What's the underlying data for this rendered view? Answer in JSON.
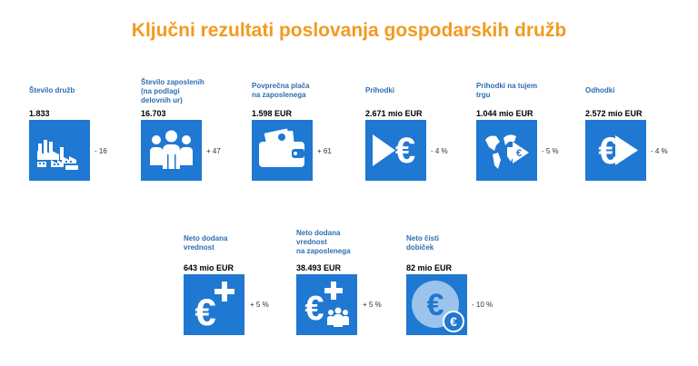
{
  "title": "Ključni rezultati poslovanja gospodarskih družb",
  "colors": {
    "title": "#F29A1F",
    "label": "#2E6DB4",
    "tile": "#1F78D1",
    "icon": "#FFFFFF",
    "coin": "#9CC3EC"
  },
  "kpis": [
    {
      "label": "Število družb",
      "value": "1.833",
      "change": "- 16",
      "icon": "factory-icon"
    },
    {
      "label": "Število zaposlenih\n(na podlagi\ndelovnih ur)",
      "value": "16.703",
      "change": "+ 47",
      "icon": "people-icon"
    },
    {
      "label": "Povprečna plača\nna zaposlenega",
      "value": "1.598 EUR",
      "change": "+ 61",
      "icon": "wallet-icon"
    },
    {
      "label": "Prihodki",
      "value": "2.671 mio EUR",
      "change": "- 4 %",
      "icon": "euro-in-icon"
    },
    {
      "label": "Prihodki na tujem\ntrgu",
      "value": "1.044 mio EUR",
      "change": "- 5 %",
      "icon": "globe-euro-icon"
    },
    {
      "label": "Odhodki",
      "value": "2.572 mio EUR",
      "change": "- 4 %",
      "icon": "euro-out-icon"
    },
    {
      "label": "Neto dodana\nvrednost",
      "value": "643 mio EUR",
      "change": "+ 5 %",
      "icon": "euro-plus-icon"
    },
    {
      "label": "Neto dodana\nvrednost\nna zaposlenega",
      "value": "38.493 EUR",
      "change": "+ 5 %",
      "icon": "euro-plus-people-icon"
    },
    {
      "label": "Neto čisti\ndobiček",
      "value": "82 mio EUR",
      "change": "- 10 %",
      "icon": "euro-coin-icon"
    }
  ]
}
